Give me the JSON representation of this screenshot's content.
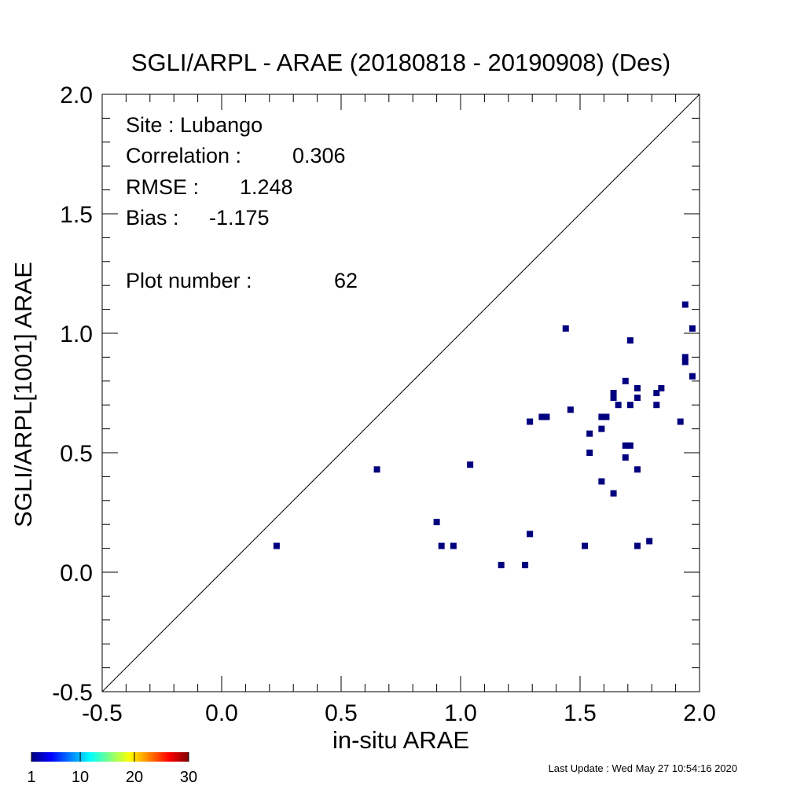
{
  "chart_data": {
    "type": "scatter",
    "title": "SGLI/ARPL - ARAE (20180818 - 20190908) (Des)",
    "xlabel": "in-situ ARAE",
    "ylabel": "SGLI/ARPL[1001]    ARAE",
    "xlim": [
      -0.5,
      2.0
    ],
    "ylim": [
      -0.5,
      2.0
    ],
    "x_ticks": [
      "-0.5",
      "0.0",
      "0.5",
      "1.0",
      "1.5",
      "2.0"
    ],
    "y_ticks": [
      "-0.5",
      "0.0",
      "0.5",
      "1.0",
      "1.5",
      "2.0"
    ],
    "one_to_one_line": true,
    "grid": false,
    "point_color": "#00007f",
    "stats": [
      {
        "label": "Site : Lubango",
        "value": ""
      },
      {
        "label": "Correlation :",
        "value": "0.306"
      },
      {
        "label": "RMSE :",
        "value": "1.248"
      },
      {
        "label": "Bias :",
        "value": "-1.175"
      },
      {
        "label": "Plot number :",
        "value": "62"
      }
    ],
    "points": [
      {
        "x": 0.23,
        "y": 0.11
      },
      {
        "x": 0.65,
        "y": 0.43
      },
      {
        "x": 0.9,
        "y": 0.21
      },
      {
        "x": 0.92,
        "y": 0.11
      },
      {
        "x": 0.97,
        "y": 0.11
      },
      {
        "x": 1.04,
        "y": 0.45
      },
      {
        "x": 1.17,
        "y": 0.03
      },
      {
        "x": 1.27,
        "y": 0.03
      },
      {
        "x": 1.29,
        "y": 0.63
      },
      {
        "x": 1.29,
        "y": 0.16
      },
      {
        "x": 1.34,
        "y": 0.65
      },
      {
        "x": 1.36,
        "y": 0.65
      },
      {
        "x": 1.44,
        "y": 1.02
      },
      {
        "x": 1.46,
        "y": 0.68
      },
      {
        "x": 1.52,
        "y": 0.11
      },
      {
        "x": 1.54,
        "y": 0.58
      },
      {
        "x": 1.54,
        "y": 0.5
      },
      {
        "x": 1.59,
        "y": 0.65
      },
      {
        "x": 1.59,
        "y": 0.6
      },
      {
        "x": 1.59,
        "y": 0.38
      },
      {
        "x": 1.61,
        "y": 0.65
      },
      {
        "x": 1.64,
        "y": 0.75
      },
      {
        "x": 1.64,
        "y": 0.73
      },
      {
        "x": 1.64,
        "y": 0.33
      },
      {
        "x": 1.66,
        "y": 0.7
      },
      {
        "x": 1.69,
        "y": 0.8
      },
      {
        "x": 1.69,
        "y": 0.53
      },
      {
        "x": 1.69,
        "y": 0.48
      },
      {
        "x": 1.71,
        "y": 0.97
      },
      {
        "x": 1.71,
        "y": 0.7
      },
      {
        "x": 1.71,
        "y": 0.53
      },
      {
        "x": 1.74,
        "y": 0.77
      },
      {
        "x": 1.74,
        "y": 0.73
      },
      {
        "x": 1.74,
        "y": 0.43
      },
      {
        "x": 1.74,
        "y": 0.11
      },
      {
        "x": 1.79,
        "y": 0.13
      },
      {
        "x": 1.82,
        "y": 0.75
      },
      {
        "x": 1.82,
        "y": 0.7
      },
      {
        "x": 1.84,
        "y": 0.77
      },
      {
        "x": 1.92,
        "y": 0.63
      },
      {
        "x": 1.94,
        "y": 1.12
      },
      {
        "x": 1.94,
        "y": 0.9
      },
      {
        "x": 1.94,
        "y": 0.88
      },
      {
        "x": 1.97,
        "y": 1.02
      },
      {
        "x": 1.97,
        "y": 0.82
      }
    ],
    "colorbar": {
      "ticks": [
        "1",
        "10",
        "20",
        "30"
      ],
      "colors": [
        "#00007f",
        "#0000ff",
        "#007fff",
        "#00ffff",
        "#7fff7f",
        "#ffff00",
        "#ff7f00",
        "#ff0000",
        "#7f0000"
      ]
    }
  },
  "footer": {
    "last_update": "Last Update : Wed May 27 10:54:16 2020"
  }
}
